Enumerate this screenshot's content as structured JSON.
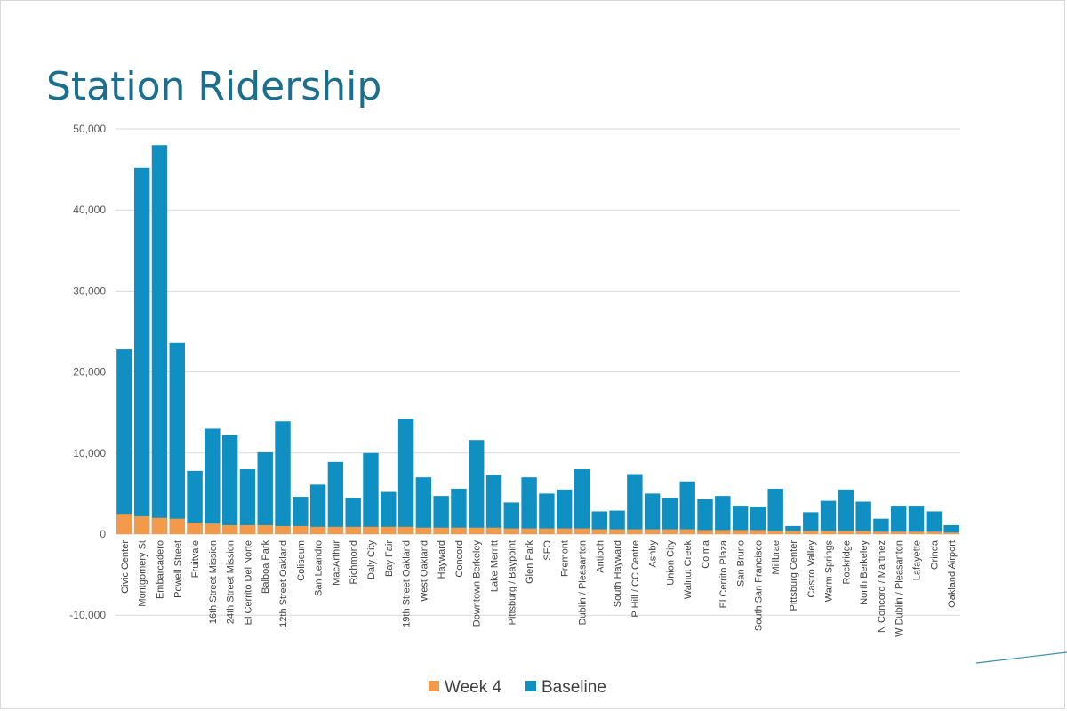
{
  "slide": {
    "title": "Station Ridership"
  },
  "colors": {
    "title": "#1a6e8e",
    "baseline": "#0f8fc2",
    "week4": "#f39a4a"
  },
  "chart_data": {
    "type": "bar",
    "stacked": true,
    "title": "",
    "xlabel": "",
    "ylabel": "",
    "ylim": [
      -10000,
      50000
    ],
    "yticks": [
      -10000,
      0,
      10000,
      20000,
      30000,
      40000,
      50000
    ],
    "ytick_labels": [
      "-10,000",
      "0",
      "10,000",
      "20,000",
      "30,000",
      "40,000",
      "50,000"
    ],
    "grid": true,
    "legend_position": "bottom",
    "categories": [
      "Civic Center",
      "Montgomery St",
      "Embarcadero",
      "Powell Street",
      "Fruitvale",
      "16th Street Mission",
      "24th Street Mission",
      "El Cerrito Del Norte",
      "Balboa Park",
      "12th Street Oakland",
      "Coliseum",
      "San Leandro",
      "MacArthur",
      "Richmond",
      "Daly City",
      "Bay Fair",
      "19th Street Oakland",
      "West Oakland",
      "Hayward",
      "Concord",
      "Downtown Berkeley",
      "Lake Merritt",
      "Pittsburg / Baypoint",
      "Glen Park",
      "SFO",
      "Fremont",
      "Dublin / Pleasanton",
      "Antioch",
      "South Hayward",
      "P Hill / CC Centre",
      "Ashby",
      "Union City",
      "Walnut Creek",
      "Colma",
      "El Cerrito Plaza",
      "San Bruno",
      "South San Francisco",
      "Millbrae",
      "Pittsburg Center",
      "Castro Valley",
      "Warm Springs",
      "Rockridge",
      "North Berkeley",
      "N Concord / Martinez",
      "W Dublin / Pleasanton",
      "Lafayette",
      "Orinda",
      "Oakland Airport"
    ],
    "series": [
      {
        "name": "Week 4",
        "values": [
          2500,
          2200,
          2000,
          1900,
          1400,
          1300,
          1100,
          1100,
          1100,
          1000,
          1000,
          900,
          900,
          900,
          900,
          900,
          900,
          800,
          800,
          800,
          800,
          800,
          700,
          700,
          700,
          700,
          700,
          600,
          600,
          600,
          600,
          600,
          600,
          500,
          500,
          500,
          500,
          400,
          400,
          400,
          400,
          400,
          400,
          300,
          300,
          300,
          300,
          200
        ]
      },
      {
        "name": "Baseline",
        "values": [
          22800,
          45200,
          48000,
          23600,
          7800,
          13000,
          12200,
          8000,
          10100,
          13900,
          4600,
          6100,
          8900,
          4500,
          10000,
          5200,
          14200,
          7000,
          4700,
          5600,
          11600,
          7300,
          3900,
          7000,
          5000,
          5500,
          8000,
          2800,
          2900,
          7400,
          5000,
          4500,
          6500,
          4300,
          4700,
          3500,
          3400,
          5600,
          1000,
          2700,
          4100,
          5500,
          4000,
          1900,
          3500,
          3500,
          2800,
          1100
        ]
      }
    ]
  }
}
